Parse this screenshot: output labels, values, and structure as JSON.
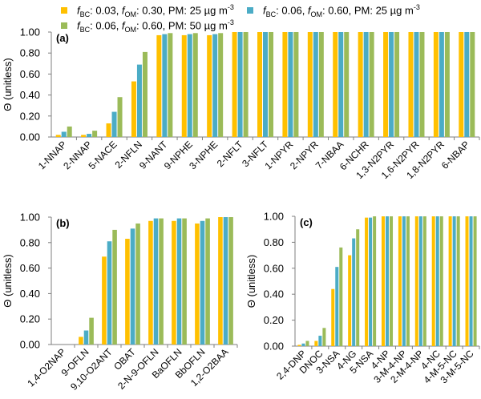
{
  "legend": [
    {
      "bc": "0.03",
      "om": "0.30",
      "pm": "25",
      "unit": "µg m",
      "exp": "-3",
      "color": "#FFC000"
    },
    {
      "bc": "0.06",
      "om": "0.60",
      "pm": "25",
      "unit": "µg m",
      "exp": "-3",
      "color": "#4BACC6"
    },
    {
      "bc": "0.06",
      "om": "0.60",
      "pm": "50",
      "unit": "µg m",
      "exp": "-3",
      "color": "#9BBB59"
    }
  ],
  "legend_labels": {
    "f": "f",
    "bc_sub": "BC",
    "om_sub": "OM",
    "pm": "PM"
  },
  "chart_data": [
    {
      "type": "bar",
      "panel_label": "(a)",
      "ylabel": "Θ (unitless)",
      "ylim": [
        0,
        1
      ],
      "yticks": [
        "0.00",
        "0.20",
        "0.40",
        "0.60",
        "0.80",
        "1.00"
      ],
      "categories": [
        "1-NNAP",
        "2-NNAP",
        "5-NACE",
        "2-NFLN",
        "9-NANT",
        "9-NPHE",
        "3-NPHE",
        "2-NFLT",
        "3-NFLT",
        "1-NPYR",
        "2-NPYR",
        "7-NBAA",
        "6-NCHR",
        "1,3-N2PYR",
        "1,6-N2PYR",
        "1,8-N2PYR",
        "6-NBAP"
      ],
      "series": [
        {
          "name": "fBC: 0.03, fOM: 0.30, PM: 25 µg m-3",
          "values": [
            0.02,
            0.02,
            0.13,
            0.53,
            0.97,
            0.97,
            0.97,
            1.0,
            1.0,
            1.0,
            1.0,
            1.0,
            1.0,
            1.0,
            1.0,
            1.0,
            1.0
          ]
        },
        {
          "name": "fBC: 0.06, fOM: 0.60, PM: 25 µg m-3",
          "values": [
            0.05,
            0.03,
            0.24,
            0.69,
            0.98,
            0.98,
            0.98,
            1.0,
            1.0,
            1.0,
            1.0,
            1.0,
            1.0,
            1.0,
            1.0,
            1.0,
            1.0
          ]
        },
        {
          "name": "fBC: 0.06, fOM: 0.60, PM: 50 µg m-3",
          "values": [
            0.1,
            0.06,
            0.38,
            0.81,
            0.99,
            0.99,
            0.99,
            1.0,
            1.0,
            1.0,
            1.0,
            1.0,
            1.0,
            1.0,
            1.0,
            1.0,
            1.0
          ]
        }
      ],
      "grid": false
    },
    {
      "type": "bar",
      "panel_label": "(b)",
      "ylabel": "Θ (unitless)",
      "ylim": [
        0,
        1
      ],
      "yticks": [
        "0.00",
        "0.20",
        "0.40",
        "0.60",
        "0.80",
        "1.00"
      ],
      "categories": [
        "1,4-O2NAP",
        "9-OFLN",
        "9,10-O2ANT",
        "OBAT",
        "2-N-9-OFLN",
        "BaOFLN",
        "BbOFLN",
        "1,2-O2BAA"
      ],
      "series": [
        {
          "name": "fBC: 0.03, fOM: 0.30, PM: 25 µg m-3",
          "values": [
            0.0,
            0.06,
            0.69,
            0.83,
            0.97,
            0.97,
            0.95,
            1.0
          ]
        },
        {
          "name": "fBC: 0.06, fOM: 0.60, PM: 25 µg m-3",
          "values": [
            0.0,
            0.11,
            0.81,
            0.91,
            0.99,
            0.99,
            0.97,
            1.0
          ]
        },
        {
          "name": "fBC: 0.06, fOM: 0.60, PM: 50 µg m-3",
          "values": [
            0.0,
            0.21,
            0.9,
            0.95,
            0.99,
            0.99,
            0.99,
            1.0
          ]
        }
      ],
      "grid": false
    },
    {
      "type": "bar",
      "panel_label": "(c)",
      "ylabel": "Θ (unitless)",
      "ylim": [
        0,
        1
      ],
      "yticks": [
        "0.00",
        "0.20",
        "0.40",
        "0.60",
        "0.80",
        "1.00"
      ],
      "categories": [
        "2,4-DNP",
        "DNOC",
        "3-NSA",
        "4-NG",
        "5-NSA",
        "4-NP",
        "3-M-4-NP",
        "2-M-4-NP",
        "4-NC",
        "4-M-5-NC",
        "3-M-5-NC"
      ],
      "series": [
        {
          "name": "fBC: 0.03, fOM: 0.30, PM: 25 µg m-3",
          "values": [
            0.01,
            0.04,
            0.44,
            0.7,
            0.99,
            1.0,
            1.0,
            1.0,
            1.0,
            1.0,
            1.0
          ]
        },
        {
          "name": "fBC: 0.06, fOM: 0.60, PM: 25 µg m-3",
          "values": [
            0.02,
            0.08,
            0.61,
            0.83,
            0.99,
            1.0,
            1.0,
            1.0,
            1.0,
            1.0,
            1.0
          ]
        },
        {
          "name": "fBC: 0.06, fOM: 0.60, PM: 50 µg m-3",
          "values": [
            0.04,
            0.14,
            0.76,
            0.9,
            1.0,
            1.0,
            1.0,
            1.0,
            1.0,
            1.0,
            1.0
          ]
        }
      ],
      "grid": false
    }
  ]
}
